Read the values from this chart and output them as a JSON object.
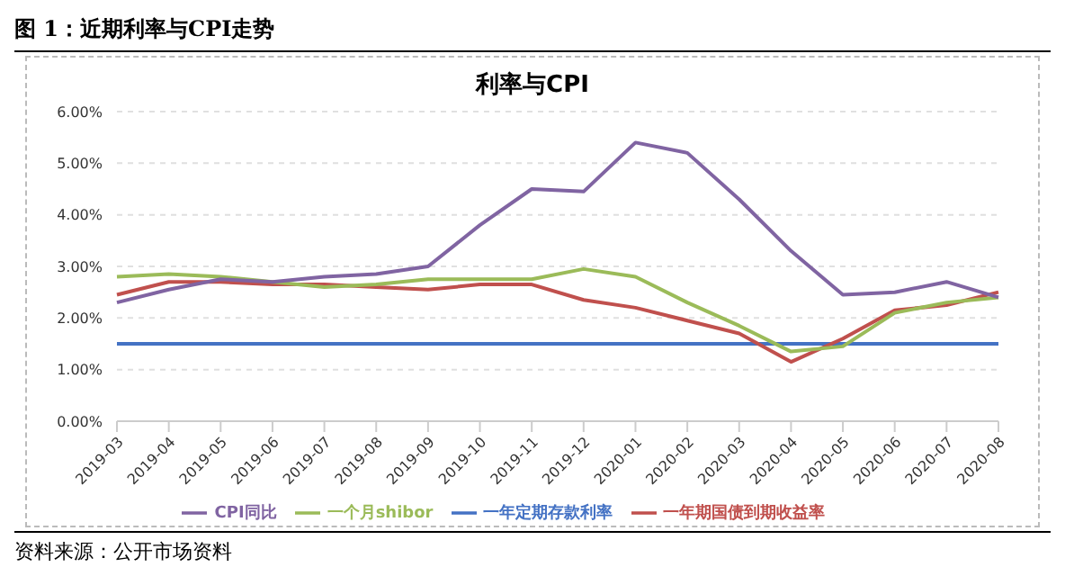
{
  "chart_data": {
    "type": "line",
    "title": "图 1：近期利率与CPI走势",
    "subtitle": "利率与CPI",
    "categories": [
      "2019-03",
      "2019-04",
      "2019-05",
      "2019-06",
      "2019-07",
      "2019-08",
      "2019-09",
      "2019-10",
      "2019-11",
      "2019-12",
      "2020-01",
      "2020-02",
      "2020-03",
      "2020-04",
      "2020-05",
      "2020-06",
      "2020-07",
      "2020-08"
    ],
    "series": [
      {
        "name": "一年定期存款利率",
        "color": "#4472c4",
        "values": [
          1.5,
          1.5,
          1.5,
          1.5,
          1.5,
          1.5,
          1.5,
          1.5,
          1.5,
          1.5,
          1.5,
          1.5,
          1.5,
          1.5,
          1.5,
          1.5,
          1.5,
          1.5
        ]
      },
      {
        "name": "一年期国债到期收益率",
        "color": "#c0504d",
        "values": [
          2.45,
          2.7,
          2.7,
          2.65,
          2.65,
          2.6,
          2.55,
          2.65,
          2.65,
          2.35,
          2.2,
          1.95,
          1.7,
          1.15,
          1.6,
          2.15,
          2.25,
          2.5
        ]
      },
      {
        "name": "一个月shibor",
        "color": "#9bbb59",
        "values": [
          2.8,
          2.85,
          2.8,
          2.7,
          2.6,
          2.65,
          2.75,
          2.75,
          2.75,
          2.95,
          2.8,
          2.3,
          1.85,
          1.35,
          1.45,
          2.1,
          2.3,
          2.4
        ]
      },
      {
        "name": "CPI同比",
        "color": "#8064a2",
        "values": [
          2.3,
          2.55,
          2.75,
          2.7,
          2.8,
          2.85,
          3.0,
          3.8,
          4.5,
          4.45,
          5.4,
          5.2,
          4.3,
          3.3,
          2.45,
          2.5,
          2.7,
          2.4
        ]
      }
    ],
    "ylim": [
      0,
      6
    ],
    "yticks": [
      {
        "value": 0,
        "label": "0.00%"
      },
      {
        "value": 1,
        "label": "1.00%"
      },
      {
        "value": 2,
        "label": "2.00%"
      },
      {
        "value": 3,
        "label": "3.00%"
      },
      {
        "value": 4,
        "label": "4.00%"
      },
      {
        "value": 5,
        "label": "5.00%"
      },
      {
        "value": 6,
        "label": "6.00%"
      }
    ],
    "grid": "y",
    "legend": "bottom",
    "marker": "none",
    "line_style": "solid",
    "annotations": [
      "资料来源：公开市场资料"
    ]
  }
}
